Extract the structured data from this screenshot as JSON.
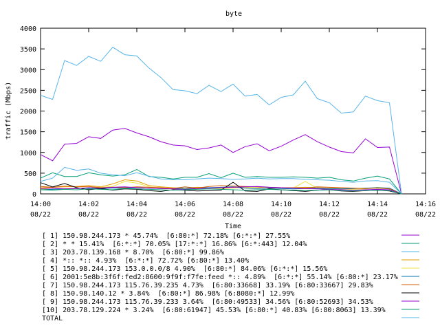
{
  "chart_data": {
    "type": "line",
    "title": "byte",
    "xlabel": "Time",
    "ylabel": "traffic (Mbps)",
    "ylim": [
      0,
      4000
    ],
    "yticks": [
      "0",
      "500",
      "1000",
      "1500",
      "2000",
      "2500",
      "3000",
      "3500",
      "4000"
    ],
    "xlim": [
      "14:00",
      "14:16"
    ],
    "xticks": [
      {
        "time": "14:00",
        "date": "08/22"
      },
      {
        "time": "14:02",
        "date": "08/22"
      },
      {
        "time": "14:04",
        "date": "08/22"
      },
      {
        "time": "14:06",
        "date": "08/22"
      },
      {
        "time": "14:08",
        "date": "08/22"
      },
      {
        "time": "14:10",
        "date": "08/22"
      },
      {
        "time": "14:12",
        "date": "08/22"
      },
      {
        "time": "14:14",
        "date": "08/22"
      },
      {
        "time": "14:16",
        "date": "08/22"
      }
    ],
    "grid": false,
    "legend_position": "bottom",
    "x": [
      "14:00:00",
      "14:00:30",
      "14:01:00",
      "14:01:30",
      "14:02:00",
      "14:02:30",
      "14:03:00",
      "14:03:30",
      "14:04:00",
      "14:04:30",
      "14:05:00",
      "14:05:30",
      "14:06:00",
      "14:06:30",
      "14:07:00",
      "14:07:30",
      "14:08:00",
      "14:08:30",
      "14:09:00",
      "14:09:30",
      "14:10:00",
      "14:10:30",
      "14:11:00",
      "14:11:30",
      "14:12:00",
      "14:12:30",
      "14:13:00",
      "14:13:30",
      "14:14:00",
      "14:14:30",
      "14:15:00"
    ],
    "series": [
      {
        "name": "[ 1] 150.98.244.173 * 45.74%  [6:80:*] 72.18% [6:*:*] 27.55%",
        "color": "#9400d3",
        "values": [
          950,
          800,
          1200,
          1220,
          1380,
          1340,
          1540,
          1580,
          1470,
          1380,
          1260,
          1180,
          1160,
          1070,
          1110,
          1180,
          1000,
          1140,
          1210,
          1040,
          1150,
          1300,
          1430,
          1260,
          1130,
          1020,
          990,
          1330,
          1120,
          1130,
          0
        ]
      },
      {
        "name": "[ 2] * * 15.41%  [6:*:*] 70.05% [17:*:*] 16.86% [6:*:443] 12.04%",
        "color": "#009e73",
        "values": [
          380,
          510,
          420,
          420,
          510,
          460,
          430,
          460,
          590,
          420,
          400,
          360,
          400,
          400,
          490,
          390,
          500,
          400,
          420,
          400,
          400,
          410,
          400,
          380,
          400,
          340,
          310,
          380,
          430,
          360,
          0
        ]
      },
      {
        "name": "[ 3] 203.78.139.168 * 8.70%  [6:80:*] 99.86%",
        "color": "#56b4e9",
        "values": [
          300,
          380,
          640,
          570,
          600,
          500,
          460,
          440,
          510,
          430,
          360,
          340,
          340,
          360,
          380,
          370,
          350,
          360,
          380,
          360,
          370,
          370,
          350,
          340,
          330,
          300,
          280,
          310,
          320,
          280,
          0
        ]
      },
      {
        "name": "[ 4] *:: *:: 4.93%  [6:*:*] 72.72% [6:80:*] 13.40%",
        "color": "#e69f00",
        "values": [
          150,
          160,
          170,
          180,
          200,
          170,
          240,
          340,
          310,
          200,
          170,
          150,
          140,
          160,
          150,
          140,
          160,
          150,
          150,
          140,
          140,
          150,
          160,
          150,
          140,
          130,
          130,
          130,
          150,
          140,
          0
        ]
      },
      {
        "name": "[ 5] 150.98.244.173 153.0.0.0/8 4.90%  [6:80:*] 84.06% [6:*:*] 15.56%",
        "color": "#f0e442",
        "values": [
          120,
          110,
          130,
          140,
          150,
          160,
          180,
          300,
          260,
          170,
          150,
          130,
          120,
          130,
          140,
          130,
          140,
          160,
          150,
          130,
          150,
          140,
          300,
          140,
          130,
          120,
          110,
          120,
          160,
          130,
          0
        ]
      },
      {
        "name": "[ 6] 2001:5e8b:3f6f:fed2:8600:9f9f:f7fe:feed *:: 4.89%  [6:*:*] 55.14% [6:80:*] 23.17%",
        "color": "#0072b2",
        "values": [
          100,
          110,
          120,
          130,
          140,
          130,
          140,
          140,
          150,
          140,
          130,
          130,
          140,
          140,
          150,
          160,
          170,
          140,
          130,
          140,
          130,
          120,
          130,
          140,
          130,
          120,
          130,
          140,
          150,
          140,
          0
        ]
      },
      {
        "name": "[ 7] 150.98.244.173 115.76.39.235 4.73%  [6:80:33668] 33.19% [6:80:33667] 29.83%",
        "color": "#d55e00",
        "values": [
          180,
          160,
          190,
          170,
          180,
          150,
          160,
          150,
          170,
          160,
          150,
          130,
          170,
          140,
          180,
          200,
          190,
          180,
          170,
          160,
          150,
          150,
          140,
          170,
          160,
          150,
          140,
          130,
          140,
          120,
          0
        ]
      },
      {
        "name": "[ 8] 150.98.140.12 * 3.84%  [6:80:*] 86.98% [6:8080:*] 12.99%",
        "color": "#000000",
        "values": [
          270,
          170,
          250,
          150,
          100,
          130,
          90,
          120,
          110,
          80,
          60,
          100,
          90,
          70,
          80,
          90,
          280,
          70,
          60,
          120,
          100,
          80,
          60,
          90,
          100,
          70,
          60,
          80,
          90,
          70,
          0
        ]
      },
      {
        "name": "[ 9] 150.98.244.173 115.76.39.233 3.64%  [6:80:49533] 34.56% [6:80:52693] 34.53%",
        "color": "#9400d3",
        "values": [
          130,
          140,
          120,
          130,
          150,
          140,
          160,
          170,
          150,
          140,
          130,
          120,
          110,
          130,
          140,
          150,
          160,
          170,
          180,
          160,
          150,
          140,
          130,
          120,
          110,
          100,
          90,
          100,
          110,
          100,
          0
        ]
      },
      {
        "name": "[10] 203.78.129.224 * 3.24%  [6:80:61947] 45.53% [6:80:*] 40.83% [6:80:8063] 13.39%",
        "color": "#009e73",
        "values": [
          100,
          90,
          110,
          100,
          120,
          110,
          100,
          130,
          120,
          110,
          100,
          90,
          100,
          110,
          120,
          110,
          100,
          90,
          100,
          110,
          100,
          90,
          80,
          90,
          100,
          80,
          70,
          80,
          90,
          80,
          0
        ]
      },
      {
        "name": "TOTAL",
        "color": "#56b4e9",
        "values": [
          2380,
          2280,
          3220,
          3100,
          3320,
          3200,
          3540,
          3360,
          3330,
          3040,
          2810,
          2520,
          2490,
          2420,
          2620,
          2470,
          2650,
          2360,
          2400,
          2150,
          2330,
          2390,
          2720,
          2300,
          2200,
          1950,
          1980,
          2360,
          2250,
          2200,
          0
        ]
      }
    ]
  }
}
